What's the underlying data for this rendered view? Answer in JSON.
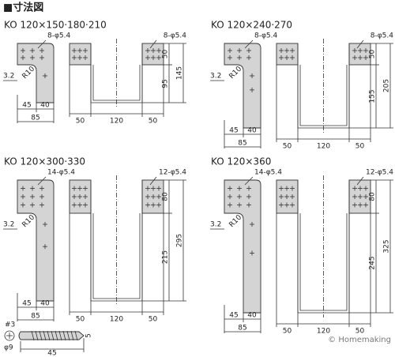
{
  "header": {
    "title": "■寸法図"
  },
  "panels": [
    {
      "title": "KO 120×150·180·210",
      "holes_left": "8-φ5.4",
      "holes_right": "8-φ5.4",
      "radius": "R10",
      "thickness": "3.2",
      "left_widths": [
        "45",
        "40"
      ],
      "left_total": "85",
      "u_widths": [
        "50",
        "120",
        "50"
      ],
      "flange_height": "50",
      "inner_height": "95",
      "total_height": "145"
    },
    {
      "title": "KO 120×240·270",
      "holes_left": "8-φ5.4",
      "holes_right": "8-φ5.4",
      "radius": "R10",
      "thickness": "3.2",
      "left_widths": [
        "45",
        "40"
      ],
      "left_total": "85",
      "u_widths": [
        "50",
        "120",
        "50"
      ],
      "flange_height": "50",
      "inner_height": "155",
      "total_height": "205"
    },
    {
      "title": "KO 120×300·330",
      "holes_left": "14-φ5.4",
      "holes_right": "12-φ5.4",
      "radius": "R10",
      "thickness": "3.2",
      "left_widths": [
        "45",
        "40"
      ],
      "left_total": "85",
      "u_widths": [
        "50",
        "120",
        "50"
      ],
      "flange_height": "80",
      "inner_height": "215",
      "total_height": "295"
    },
    {
      "title": "KO 120×360",
      "holes_left": "14-φ5.4",
      "holes_right": "12-φ5.4",
      "radius": "R10",
      "thickness": "3.2",
      "left_widths": [
        "45",
        "40"
      ],
      "left_total": "85",
      "u_widths": [
        "50",
        "120",
        "50"
      ],
      "flange_height": "80",
      "inner_height": "245",
      "total_height": "325"
    }
  ],
  "screw": {
    "size": "#3",
    "head": "φ9",
    "length": "45",
    "thread": "5"
  },
  "credit": "© Homemaking"
}
